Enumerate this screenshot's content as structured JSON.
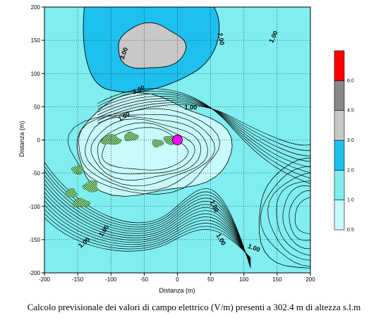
{
  "chart_data": {
    "type": "heatmap",
    "title": "",
    "caption": "Calcolo previsionale dei valori di campo elettrico (V/m) presenti a 302.4 m di altezza s.l.m",
    "xlabel": "Distanza (m)",
    "ylabel": "Distanza (m)",
    "xlim": [
      -200,
      200
    ],
    "ylim": [
      -200,
      200
    ],
    "x_ticks": [
      -200,
      -150,
      -100,
      -50,
      0,
      50,
      100,
      150,
      200
    ],
    "y_ticks": [
      -200,
      -150,
      -100,
      -50,
      0,
      50,
      100,
      150,
      200
    ],
    "grid": true,
    "legend_position": "right",
    "color_scale": [
      {
        "from": 0.5,
        "to": 1.0,
        "color": "#c8fafa"
      },
      {
        "from": 1.0,
        "to": 2.0,
        "color": "#80eef0"
      },
      {
        "from": 2.0,
        "to": 3.0,
        "color": "#1ec0ee"
      },
      {
        "from": 3.0,
        "to": 4.5,
        "color": "#c8c8c8"
      },
      {
        "from": 4.5,
        "to": 6.0,
        "color": "#888888"
      },
      {
        "from": 6.0,
        "to": 8.0,
        "color": "#ff0000"
      }
    ],
    "legend_ticks": [
      "0.5",
      "1.0",
      "2.0",
      "3.0",
      "4.5",
      "6.0"
    ],
    "contour_labels": [
      {
        "text": "3.00",
        "x": -80,
        "y": 130,
        "rotation": -70
      },
      {
        "text": "2.00",
        "x": 65,
        "y": 152,
        "rotation": 80
      },
      {
        "text": "1.00",
        "x": 145,
        "y": 155,
        "rotation": -65
      },
      {
        "text": "2.00",
        "x": -58,
        "y": 75,
        "rotation": -25
      },
      {
        "text": "1.00",
        "x": 20,
        "y": 48,
        "rotation": 0
      },
      {
        "text": "1.00",
        "x": -80,
        "y": 35,
        "rotation": -30
      },
      {
        "text": "1.00",
        "x": 55,
        "y": -100,
        "rotation": 65
      },
      {
        "text": "1.00",
        "x": 65,
        "y": -150,
        "rotation": 60
      },
      {
        "text": "1.00",
        "x": 115,
        "y": -163,
        "rotation": 20
      },
      {
        "text": "1.00",
        "x": -110,
        "y": -137,
        "rotation": -55
      },
      {
        "text": "1.00",
        "x": -140,
        "y": -155,
        "rotation": -40
      }
    ],
    "source_marker": {
      "x": 0,
      "y": 0,
      "color": "#ff00ff"
    }
  }
}
